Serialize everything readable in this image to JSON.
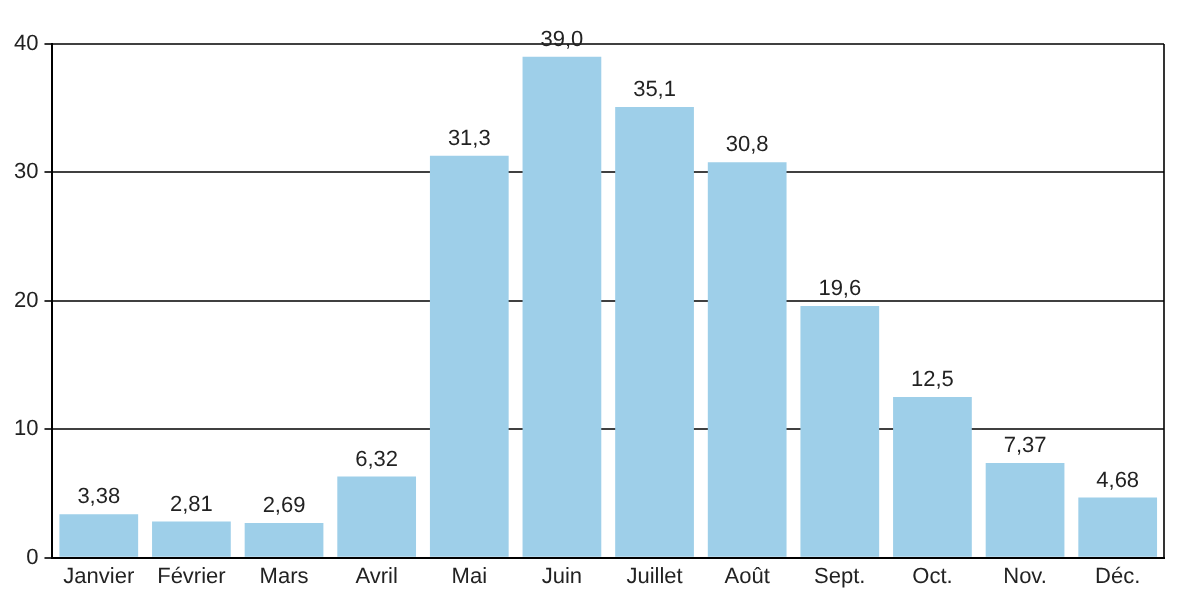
{
  "chart_data": {
    "type": "bar",
    "categories": [
      "Janvier",
      "Février",
      "Mars",
      "Avril",
      "Mai",
      "Juin",
      "Juillet",
      "Août",
      "Sept.",
      "Oct.",
      "Nov.",
      "Déc."
    ],
    "values": [
      3.38,
      2.81,
      2.69,
      6.32,
      31.3,
      39.0,
      35.1,
      30.8,
      19.6,
      12.5,
      7.37,
      4.68
    ],
    "value_labels": [
      "3,38",
      "2,81",
      "2,69",
      "6,32",
      "31,3",
      "39,0",
      "35,1",
      "30,8",
      "19,6",
      "12,5",
      "7,37",
      "4,68"
    ],
    "color": "#9ecfe9",
    "ylim": [
      0,
      40
    ],
    "yticks": [
      0,
      10,
      20,
      30,
      40
    ],
    "grid": "y",
    "legend": false
  }
}
